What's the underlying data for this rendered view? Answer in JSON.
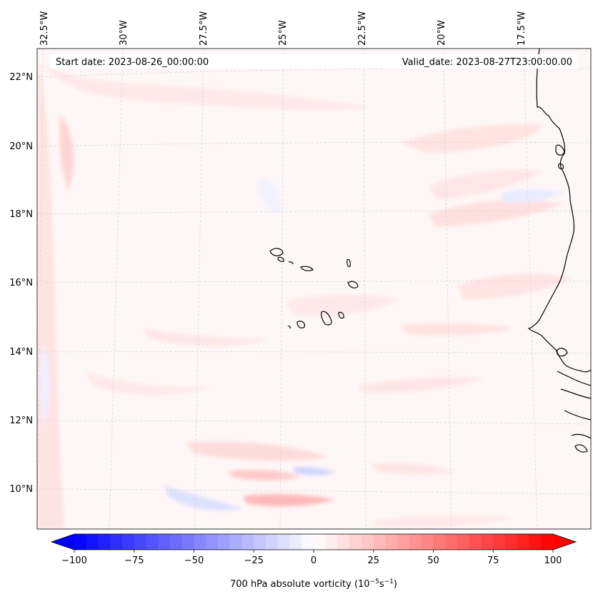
{
  "map": {
    "start_date": "Start date: 2023-08-26_00:00:00",
    "valid_date": "Valid_date: 2023-08-27T23:00:00.00",
    "lon_labels": [
      "32.5°W",
      "30°W",
      "27.5°W",
      "25°W",
      "22.5°W",
      "20°W",
      "17.5°W"
    ],
    "lat_labels": [
      "22°N",
      "20°N",
      "18°N",
      "16°N",
      "14°N",
      "12°N",
      "10°N"
    ],
    "coastline_color": "#000000",
    "gridline_color": "#cfcfcf"
  },
  "colorbar": {
    "title_prefix": "700 hPa absolute vorticity (10",
    "title_exp1": "−5",
    "title_mid": "s",
    "title_exp2": "−1",
    "title_suffix": ")",
    "ticks": [
      "−100",
      "−75",
      "−50",
      "−25",
      "0",
      "25",
      "50",
      "75",
      "100"
    ],
    "min": -100,
    "max": 100,
    "low_color": "#0000ff",
    "mid_color": "#ffffff",
    "high_color": "#ff0000",
    "levels": 40
  }
}
